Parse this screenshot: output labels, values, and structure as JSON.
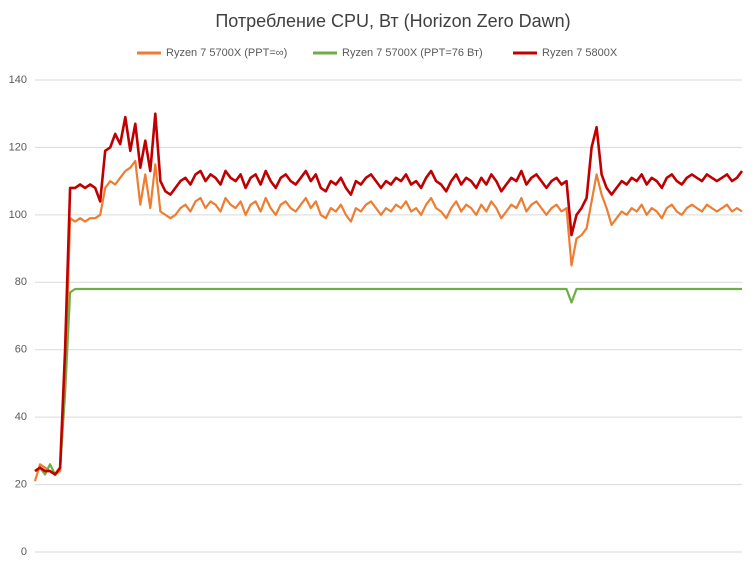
{
  "chart_data": {
    "type": "line",
    "title": "Потребление CPU, Вт (Horizon Zero Dawn)",
    "ylim": [
      0,
      140
    ],
    "yticks": [
      0,
      20,
      40,
      60,
      80,
      100,
      120,
      140
    ],
    "grid": true,
    "legend": "top",
    "series": [
      {
        "name": "Ryzen 7 5700X (PPT=∞)",
        "color": "#ed7d31",
        "values": [
          21,
          26,
          25,
          24,
          23,
          24,
          50,
          99,
          98,
          99,
          98,
          99,
          99,
          100,
          108,
          110,
          109,
          111,
          113,
          114,
          116,
          103,
          112,
          102,
          115,
          101,
          100,
          99,
          100,
          102,
          103,
          101,
          104,
          105,
          102,
          104,
          103,
          101,
          105,
          103,
          102,
          104,
          100,
          103,
          104,
          101,
          105,
          102,
          100,
          103,
          104,
          102,
          101,
          103,
          105,
          102,
          104,
          100,
          99,
          102,
          101,
          103,
          100,
          98,
          102,
          101,
          103,
          104,
          102,
          100,
          102,
          101,
          103,
          102,
          104,
          101,
          102,
          100,
          103,
          105,
          102,
          101,
          99,
          102,
          104,
          101,
          103,
          102,
          100,
          103,
          101,
          104,
          102,
          99,
          101,
          103,
          102,
          105,
          101,
          103,
          104,
          102,
          100,
          102,
          103,
          101,
          102,
          85,
          93,
          94,
          96,
          104,
          112,
          106,
          102,
          97,
          99,
          101,
          100,
          102,
          101,
          103,
          100,
          102,
          101,
          99,
          102,
          103,
          101,
          100,
          102,
          103,
          102,
          101,
          103,
          102,
          101,
          102,
          103,
          101,
          102,
          101
        ]
      },
      {
        "name": "Ryzen 7 5700X (PPT=76 Вт)",
        "color": "#70ad47",
        "values": [
          24,
          25,
          23,
          26,
          23,
          25,
          47,
          77,
          78,
          78,
          78,
          78,
          78,
          78,
          78,
          78,
          78,
          78,
          78,
          78,
          78,
          78,
          78,
          78,
          78,
          78,
          78,
          78,
          78,
          78,
          78,
          78,
          78,
          78,
          78,
          78,
          78,
          78,
          78,
          78,
          78,
          78,
          78,
          78,
          78,
          78,
          78,
          78,
          78,
          78,
          78,
          78,
          78,
          78,
          78,
          78,
          78,
          78,
          78,
          78,
          78,
          78,
          78,
          78,
          78,
          78,
          78,
          78,
          78,
          78,
          78,
          78,
          78,
          78,
          78,
          78,
          78,
          78,
          78,
          78,
          78,
          78,
          78,
          78,
          78,
          78,
          78,
          78,
          78,
          78,
          78,
          78,
          78,
          78,
          78,
          78,
          78,
          78,
          78,
          78,
          78,
          78,
          78,
          78,
          78,
          78,
          78,
          74,
          78,
          78,
          78,
          78,
          78,
          78,
          78,
          78,
          78,
          78,
          78,
          78,
          78,
          78,
          78,
          78,
          78,
          78,
          78,
          78,
          78,
          78,
          78,
          78,
          78,
          78,
          78,
          78,
          78,
          78,
          78,
          78,
          78,
          78
        ]
      },
      {
        "name": "Ryzen 7 5800X",
        "color": "#c00000",
        "values": [
          24,
          25,
          24,
          24,
          23,
          25,
          60,
          108,
          108,
          109,
          108,
          109,
          108,
          104,
          119,
          120,
          124,
          121,
          129,
          119,
          127,
          114,
          122,
          113,
          130,
          110,
          107,
          106,
          108,
          110,
          111,
          109,
          112,
          113,
          110,
          112,
          111,
          109,
          113,
          111,
          110,
          112,
          108,
          111,
          112,
          109,
          113,
          110,
          108,
          111,
          112,
          110,
          109,
          111,
          113,
          110,
          112,
          108,
          107,
          110,
          109,
          111,
          108,
          106,
          110,
          109,
          111,
          112,
          110,
          108,
          110,
          109,
          111,
          110,
          112,
          109,
          110,
          108,
          111,
          113,
          110,
          109,
          107,
          110,
          112,
          109,
          111,
          110,
          108,
          111,
          109,
          112,
          110,
          107,
          109,
          111,
          110,
          113,
          109,
          111,
          112,
          110,
          108,
          110,
          111,
          109,
          110,
          94,
          100,
          102,
          105,
          120,
          126,
          112,
          108,
          106,
          108,
          110,
          109,
          111,
          110,
          112,
          109,
          111,
          110,
          108,
          111,
          112,
          110,
          109,
          111,
          112,
          111,
          110,
          112,
          111,
          110,
          111,
          112,
          110,
          111,
          113
        ]
      }
    ]
  }
}
